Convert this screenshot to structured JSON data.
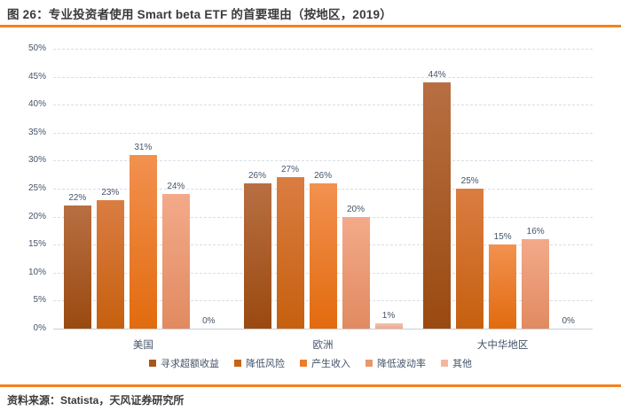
{
  "title": "图 26：专业投资者使用 Smart beta ETF 的首要理由（按地区，2019）",
  "source": "资料来源：Statista，天风证券研究所",
  "colors": {
    "accent_rule": "#f5821f",
    "axis_text": "#44546a",
    "grid_line": "#d8dee8",
    "baseline": "#c6cfdc",
    "title_text": "#3b3b3b"
  },
  "chart_data": {
    "type": "bar",
    "title": "专业投资者使用 Smart beta ETF 的首要理由（按地区，2019）",
    "categories": [
      "美国",
      "欧洲",
      "大中华地区"
    ],
    "series": [
      {
        "name": "寻求超额收益",
        "values": [
          22,
          26,
          44
        ],
        "color_top": "#b86f42",
        "color_bottom": "#9a4a10",
        "legend_color": "#a9551e"
      },
      {
        "name": "降低风险",
        "values": [
          23,
          27,
          25
        ],
        "color_top": "#da7d42",
        "color_bottom": "#c6600f",
        "legend_color": "#c96415"
      },
      {
        "name": "产生收入",
        "values": [
          31,
          26,
          15
        ],
        "color_top": "#f29150",
        "color_bottom": "#e26b0e",
        "legend_color": "#ec7c27"
      },
      {
        "name": "降低波动率",
        "values": [
          24,
          20,
          16
        ],
        "color_top": "#f3aa8a",
        "color_bottom": "#e18a60",
        "legend_color": "#e9966e"
      },
      {
        "name": "其他",
        "values": [
          0,
          1,
          0
        ],
        "color_top": "#f4c2ae",
        "color_bottom": "#eca98e",
        "legend_color": "#f2b79e"
      }
    ],
    "ylim": [
      0,
      50
    ],
    "tick_step": 5,
    "tick_suffix": "%",
    "value_suffix": "%",
    "grid": "horizontal-dashed",
    "legend_position": "bottom",
    "xlabel": "",
    "ylabel": ""
  }
}
